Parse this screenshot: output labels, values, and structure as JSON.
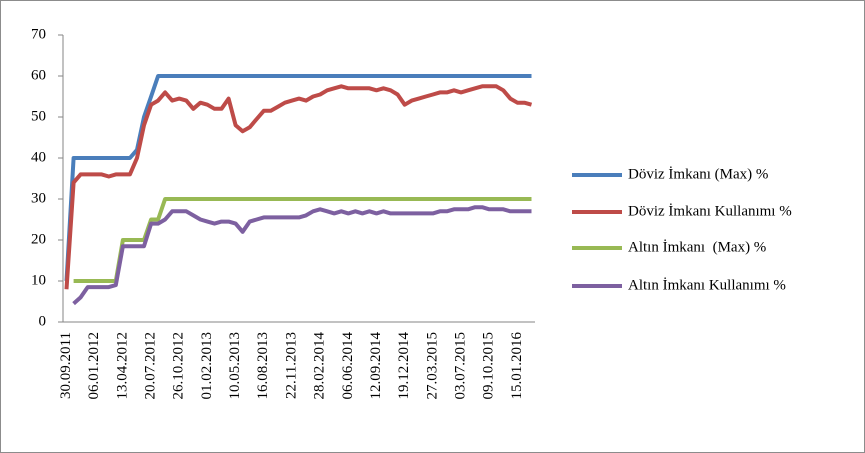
{
  "chart_data": {
    "type": "line",
    "categories": [
      "30.09.2011",
      null,
      null,
      null,
      "06.01.2012",
      null,
      null,
      null,
      "13.04.2012",
      null,
      null,
      null,
      "20.07.2012",
      null,
      null,
      null,
      "26.10.2012",
      null,
      null,
      null,
      "01.02.2013",
      null,
      null,
      null,
      "10.05.2013",
      null,
      null,
      null,
      "16.08.2013",
      null,
      null,
      null,
      "22.11.2013",
      null,
      null,
      null,
      "28.02.2014",
      null,
      null,
      null,
      "06.06.2014",
      null,
      null,
      null,
      "12.09.2014",
      null,
      null,
      null,
      "19.12.2014",
      null,
      null,
      null,
      "27.03.2015",
      null,
      null,
      null,
      "03.07.2015",
      null,
      null,
      null,
      "09.10.2015",
      null,
      null,
      null,
      "15.01.2016",
      null,
      null
    ],
    "series": [
      {
        "name": "Döviz İmkanı (Max) %",
        "color": "#4a7ebb",
        "values": [
          10,
          40,
          40,
          40,
          40,
          40,
          40,
          40,
          40,
          40,
          42,
          50,
          55,
          60,
          60,
          60,
          60,
          60,
          60,
          60,
          60,
          60,
          60,
          60,
          60,
          60,
          60,
          60,
          60,
          60,
          60,
          60,
          60,
          60,
          60,
          60,
          60,
          60,
          60,
          60,
          60,
          60,
          60,
          60,
          60,
          60,
          60,
          60,
          60,
          60,
          60,
          60,
          60,
          60,
          60,
          60,
          60,
          60,
          60,
          60,
          60,
          60,
          60,
          60,
          60,
          60,
          60
        ]
      },
      {
        "name": "Döviz İmkanı Kullanımı %",
        "color": "#be4b48",
        "values": [
          8,
          34,
          36,
          36,
          36,
          36,
          35.5,
          36,
          36,
          36,
          40,
          48,
          53,
          54,
          56,
          54,
          54.5,
          54,
          52,
          53.5,
          53,
          52,
          52,
          54.5,
          48,
          46.5,
          47.5,
          49.5,
          51.5,
          51.5,
          52.5,
          53.5,
          54,
          54.5,
          54,
          55,
          55.5,
          56.5,
          57,
          57.5,
          57,
          57,
          57,
          57,
          56.5,
          57,
          56.5,
          55.5,
          53,
          54,
          54.5,
          55,
          55.5,
          56,
          56,
          56.5,
          56,
          56.5,
          57,
          57.5,
          57.5,
          57.5,
          56.5,
          54.5,
          53.5,
          53.5,
          53
        ]
      },
      {
        "name": "Altın İmkanı  (Max) %",
        "color": "#98b954",
        "values": [
          null,
          10,
          10,
          10,
          10,
          10,
          10,
          10,
          20,
          20,
          20,
          20,
          25,
          25,
          30,
          30,
          30,
          30,
          30,
          30,
          30,
          30,
          30,
          30,
          30,
          30,
          30,
          30,
          30,
          30,
          30,
          30,
          30,
          30,
          30,
          30,
          30,
          30,
          30,
          30,
          30,
          30,
          30,
          30,
          30,
          30,
          30,
          30,
          30,
          30,
          30,
          30,
          30,
          30,
          30,
          30,
          30,
          30,
          30,
          30,
          30,
          30,
          30,
          30,
          30,
          30,
          30
        ]
      },
      {
        "name": "Altın İmkanı Kullanımı %",
        "color": "#7d60a0",
        "values": [
          null,
          4.5,
          6,
          8.5,
          8.5,
          8.5,
          8.5,
          9,
          18.5,
          18.5,
          18.5,
          18.5,
          24,
          24,
          25,
          27,
          27,
          27,
          26,
          25,
          24.5,
          24,
          24.5,
          24.5,
          24,
          22,
          24.5,
          25,
          25.5,
          25.5,
          25.5,
          25.5,
          25.5,
          25.5,
          26,
          27,
          27.5,
          27,
          26.5,
          27,
          26.5,
          27,
          26.5,
          27,
          26.5,
          27,
          26.5,
          26.5,
          26.5,
          26.5,
          26.5,
          26.5,
          26.5,
          27,
          27,
          27.5,
          27.5,
          27.5,
          28,
          28,
          27.5,
          27.5,
          27.5,
          27,
          27,
          27,
          27
        ]
      }
    ],
    "ylim": [
      0,
      70
    ],
    "yticks": [
      0,
      10,
      20,
      30,
      40,
      50,
      60,
      70
    ],
    "grid": false,
    "legend": "right"
  }
}
